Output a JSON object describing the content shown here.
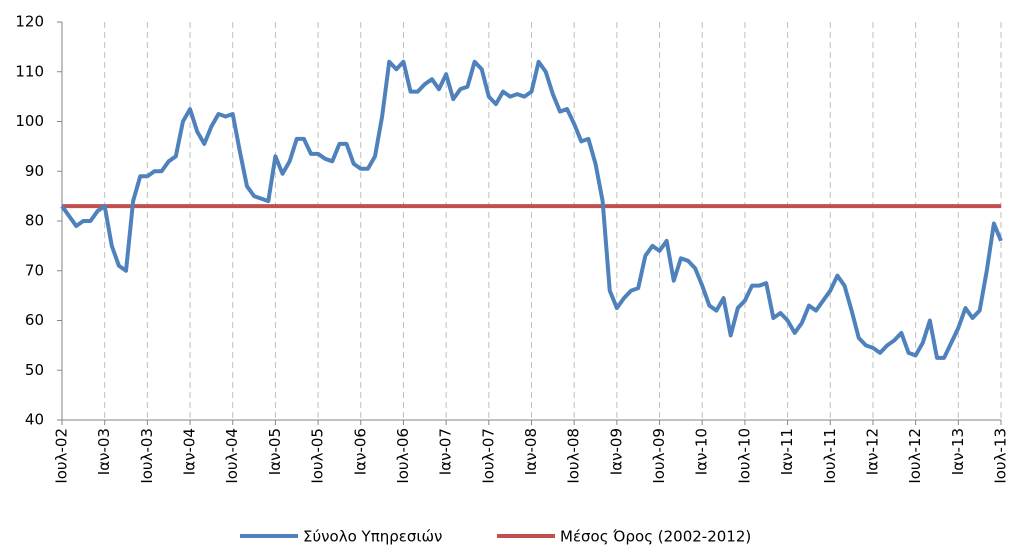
{
  "chart_data": {
    "type": "line",
    "categories": [
      "Ιουλ-02",
      null,
      null,
      null,
      null,
      null,
      "Ιαν-03",
      null,
      null,
      null,
      null,
      null,
      "Ιουλ-03",
      null,
      null,
      null,
      null,
      null,
      "Ιαν-04",
      null,
      null,
      null,
      null,
      null,
      "Ιουλ-04",
      null,
      null,
      null,
      null,
      null,
      "Ιαν-05",
      null,
      null,
      null,
      null,
      null,
      "Ιουλ-05",
      null,
      null,
      null,
      null,
      null,
      "Ιαν-06",
      null,
      null,
      null,
      null,
      null,
      "Ιουλ-06",
      null,
      null,
      null,
      null,
      null,
      "Ιαν-07",
      null,
      null,
      null,
      null,
      null,
      "Ιουλ-07",
      null,
      null,
      null,
      null,
      null,
      "Ιαν-08",
      null,
      null,
      null,
      null,
      null,
      "Ιουλ-08",
      null,
      null,
      null,
      null,
      null,
      "Ιαν-09",
      null,
      null,
      null,
      null,
      null,
      "Ιουλ-09",
      null,
      null,
      null,
      null,
      null,
      "Ιαν-10",
      null,
      null,
      null,
      null,
      null,
      "Ιουλ-10",
      null,
      null,
      null,
      null,
      null,
      "Ιαν-11",
      null,
      null,
      null,
      null,
      null,
      "Ιουλ-11",
      null,
      null,
      null,
      null,
      null,
      "Ιαν-12",
      null,
      null,
      null,
      null,
      null,
      "Ιουλ-12",
      null,
      null,
      null,
      null,
      null,
      "Ιαν-13",
      null,
      null,
      null,
      null,
      null,
      "Ιουλ-13"
    ],
    "series": [
      {
        "name": "Σύνολο Υπηρεσιών",
        "color": "#4f81bd",
        "values": [
          83,
          81,
          79,
          80,
          80,
          82,
          83,
          75,
          71,
          70,
          84,
          89,
          89,
          90,
          90,
          92,
          93,
          100,
          102.5,
          98,
          95.5,
          99,
          101.5,
          101,
          101.5,
          94,
          87,
          85,
          84.5,
          84,
          93,
          89.5,
          92,
          96.5,
          96.5,
          93.5,
          93.5,
          92.5,
          92,
          95.5,
          95.5,
          91.5,
          90.5,
          90.5,
          93,
          101,
          112,
          110.5,
          112,
          106,
          106,
          107.5,
          108.5,
          106.5,
          109.5,
          104.5,
          106.5,
          107,
          112,
          110.5,
          105,
          103.5,
          106,
          105,
          105.5,
          105,
          106,
          112,
          110,
          105.5,
          102,
          102.5,
          99.5,
          96,
          96.5,
          91.5,
          84,
          66,
          62.5,
          64.5,
          66,
          66.5,
          73,
          75,
          74,
          76,
          68,
          72.5,
          72,
          70.5,
          67,
          63,
          62,
          64.5,
          57,
          62.5,
          64,
          67,
          67,
          67.5,
          60.5,
          61.5,
          60,
          57.5,
          59.5,
          63,
          62,
          64,
          66,
          69,
          67,
          62,
          56.5,
          55,
          54.5,
          53.5,
          55,
          56,
          57.5,
          53.5,
          53,
          55.5,
          60,
          52.5,
          52.5,
          55.5,
          58.5,
          62.5,
          60.5,
          62,
          70,
          79.5,
          76
        ]
      },
      {
        "name": "Μέσος Όρος (2002-2012)",
        "color": "#c0504d",
        "values": [
          83,
          83,
          83,
          83,
          83,
          83,
          83,
          83,
          83,
          83,
          83,
          83,
          83,
          83,
          83,
          83,
          83,
          83,
          83,
          83,
          83,
          83,
          83,
          83,
          83,
          83,
          83,
          83,
          83,
          83,
          83,
          83,
          83,
          83,
          83,
          83,
          83,
          83,
          83,
          83,
          83,
          83,
          83,
          83,
          83,
          83,
          83,
          83,
          83,
          83,
          83,
          83,
          83,
          83,
          83,
          83,
          83,
          83,
          83,
          83,
          83,
          83,
          83,
          83,
          83,
          83,
          83,
          83,
          83,
          83,
          83,
          83,
          83,
          83,
          83,
          83,
          83,
          83,
          83,
          83,
          83,
          83,
          83,
          83,
          83,
          83,
          83,
          83,
          83,
          83,
          83,
          83,
          83,
          83,
          83,
          83,
          83,
          83,
          83,
          83,
          83,
          83,
          83,
          83,
          83,
          83,
          83,
          83,
          83,
          83,
          83,
          83,
          83,
          83,
          83,
          83,
          83,
          83,
          83,
          83,
          83,
          83,
          83,
          83,
          83,
          83,
          83,
          83,
          83,
          83,
          83,
          83,
          83
        ]
      }
    ],
    "ylim": [
      40,
      120
    ],
    "yticks": [
      40,
      50,
      60,
      70,
      80,
      90,
      100,
      110,
      120
    ],
    "grid": true
  }
}
